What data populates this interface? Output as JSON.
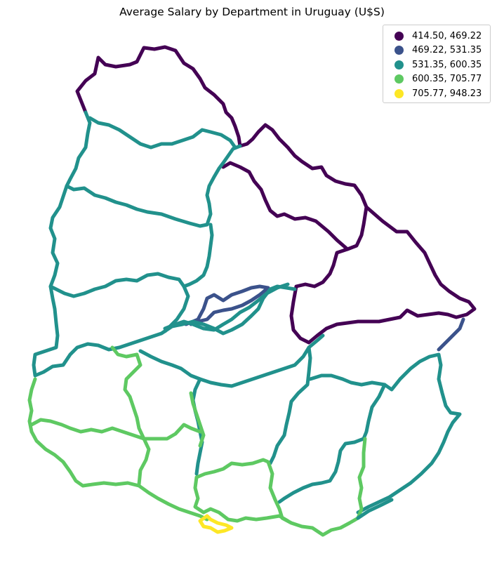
{
  "title": "Average Salary by Department in Uruguay (U$S)",
  "legend": {
    "placement": "top-right",
    "entries": [
      {
        "label": "414.50, 469.22",
        "color": "#440154"
      },
      {
        "label": "469.22, 531.35",
        "color": "#3b528b"
      },
      {
        "label": "531.35, 600.35",
        "color": "#21918c"
      },
      {
        "label": "600.35, 705.77",
        "color": "#5ec962"
      },
      {
        "label": "705.77, 948.23",
        "color": "#fde725"
      }
    ]
  },
  "map": {
    "country": "Uruguay",
    "variable": "Average Salary by Department (U$S)",
    "classes": 5,
    "colormap": "viridis"
  }
}
